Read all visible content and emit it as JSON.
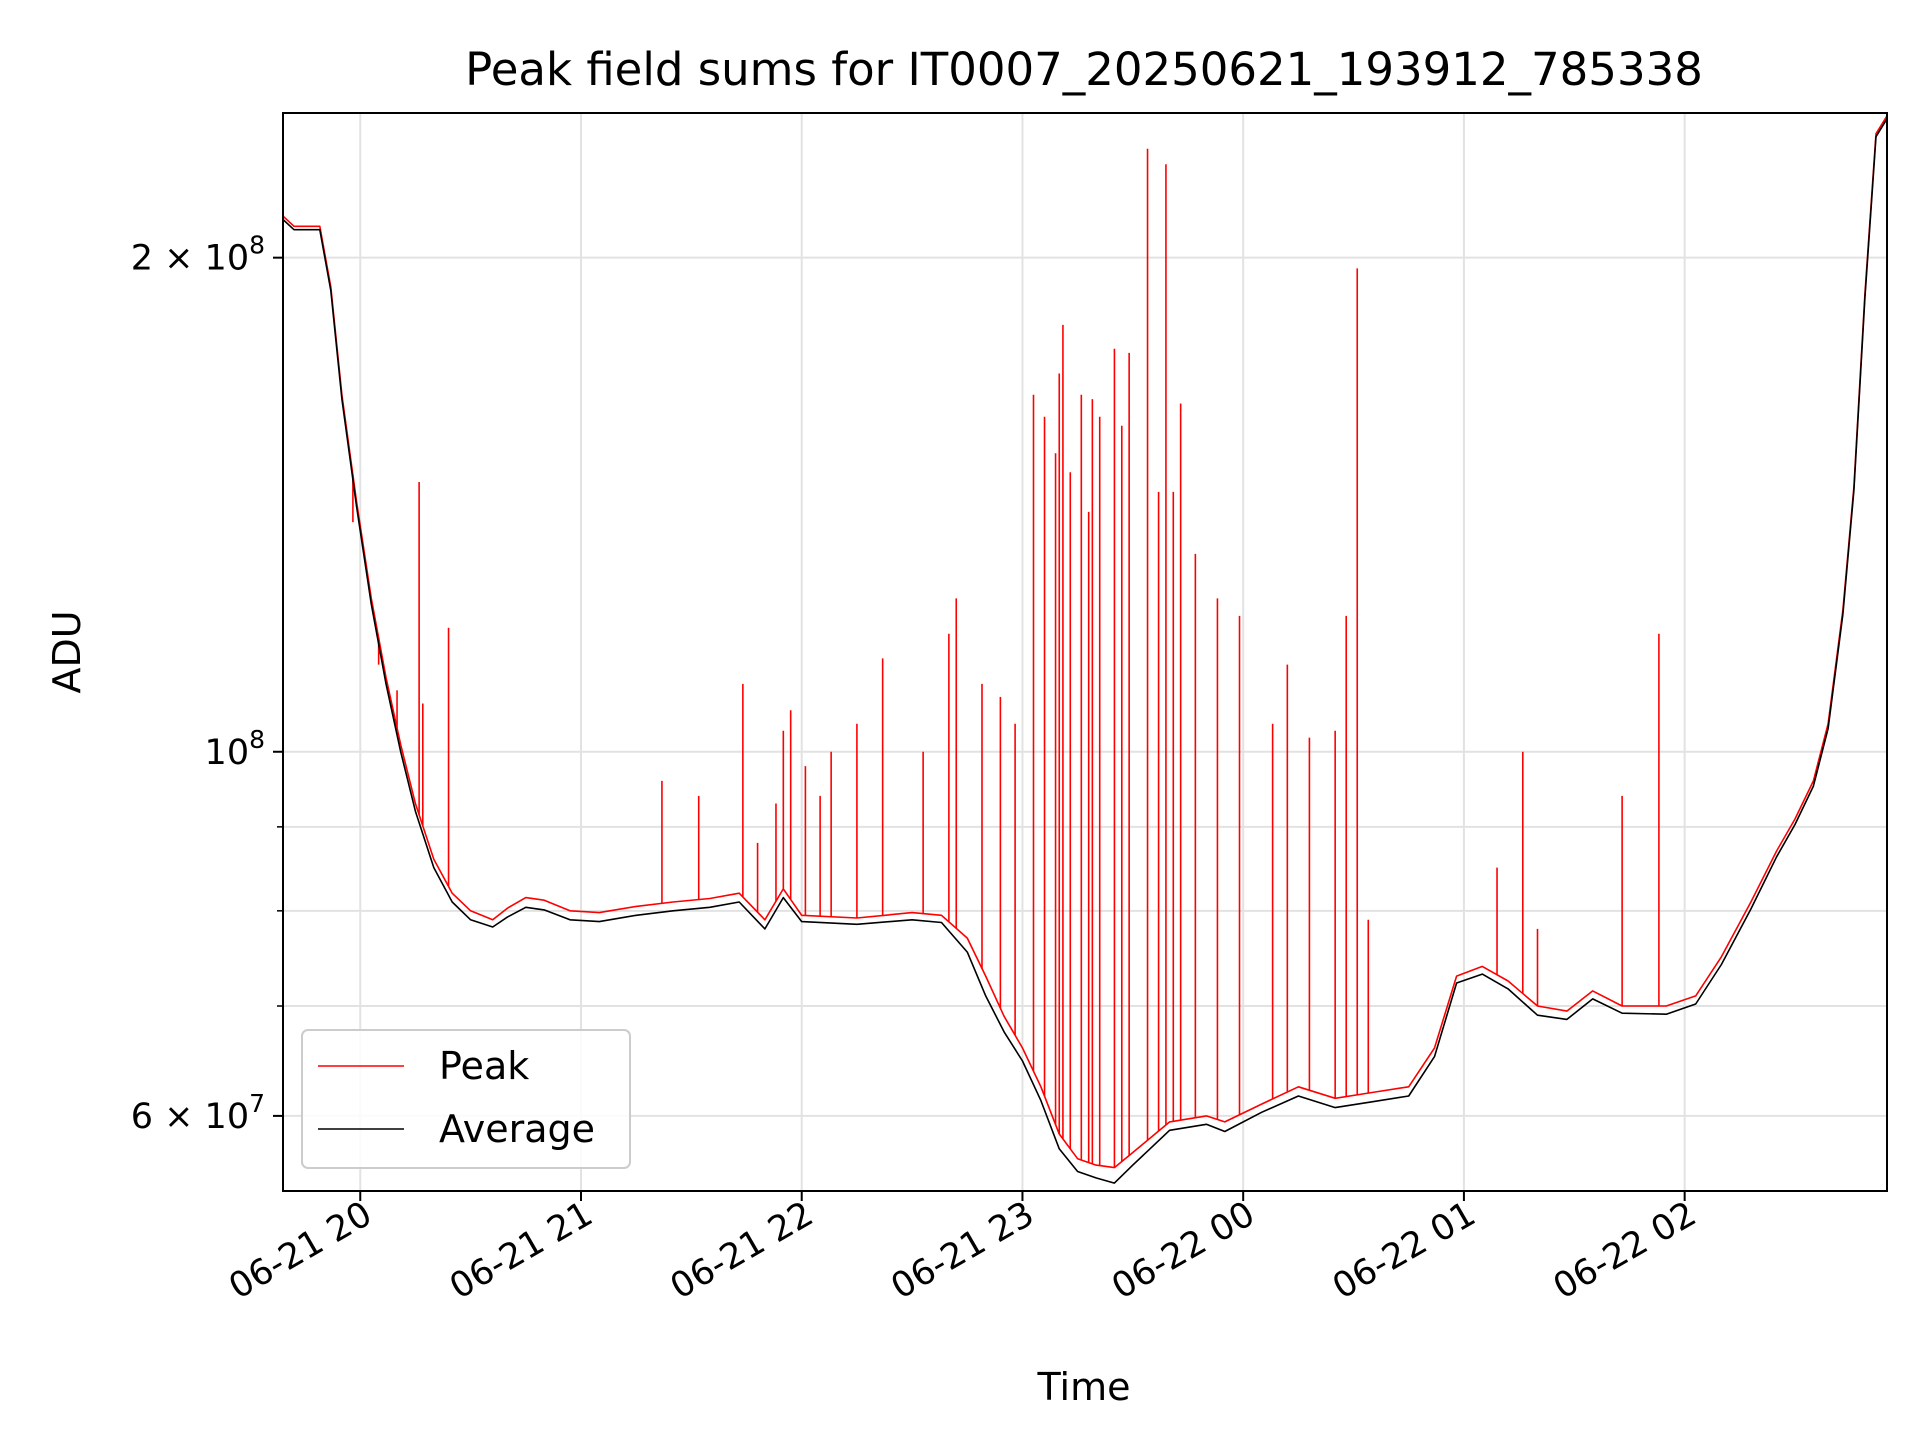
{
  "chart_data": {
    "type": "line",
    "title": "Peak field sums for IT0007_20250621_193912_785338",
    "xlabel": "Time",
    "ylabel": "ADU",
    "x_axis": {
      "type": "time",
      "range": [
        "2025-06-21 19:39",
        "2025-06-22 02:55"
      ],
      "ticks": [
        {
          "t": "2025-06-21 20:00",
          "label": "06-21 20"
        },
        {
          "t": "2025-06-21 21:00",
          "label": "06-21 21"
        },
        {
          "t": "2025-06-21 22:00",
          "label": "06-21 22"
        },
        {
          "t": "2025-06-21 23:00",
          "label": "06-21 23"
        },
        {
          "t": "2025-06-22 00:00",
          "label": "06-22 00"
        },
        {
          "t": "2025-06-22 01:00",
          "label": "06-22 01"
        },
        {
          "t": "2025-06-22 02:00",
          "label": "06-22 02"
        }
      ]
    },
    "y_axis": {
      "scale": "log",
      "range": [
        54000000,
        245000000
      ],
      "major_ticks": [
        {
          "value": 60000000,
          "mantissa": "6",
          "exponent": "7"
        },
        {
          "value": 100000000,
          "mantissa": "",
          "exponent": "8"
        },
        {
          "value": 200000000,
          "mantissa": "2",
          "exponent": "8"
        }
      ],
      "minor_ticks": [
        70000000,
        80000000,
        90000000
      ]
    },
    "grid": true,
    "legend": {
      "placement": "lower-left"
    },
    "series": [
      {
        "name": "Peak",
        "color": "#ff0000",
        "points": [
          [
            "2025-06-21 19:39",
            212000000
          ],
          [
            "2025-06-21 19:42",
            209000000
          ],
          [
            "2025-06-21 19:49",
            209000000
          ],
          [
            "2025-06-21 19:52",
            192000000
          ],
          [
            "2025-06-21 19:55",
            165000000
          ],
          [
            "2025-06-21 19:59",
            142000000
          ],
          [
            "2025-06-21 20:03",
            124000000
          ],
          [
            "2025-06-21 20:07",
            111000000
          ],
          [
            "2025-06-21 20:11",
            101000000
          ],
          [
            "2025-06-21 20:15",
            93000000
          ],
          [
            "2025-06-21 20:20",
            86000000
          ],
          [
            "2025-06-21 20:25",
            82000000
          ],
          [
            "2025-06-21 20:30",
            80000000
          ],
          [
            "2025-06-21 20:36",
            79000000
          ],
          [
            "2025-06-21 20:40",
            80300000
          ],
          [
            "2025-06-21 20:45",
            81500000
          ],
          [
            "2025-06-21 20:50",
            81200000
          ],
          [
            "2025-06-21 20:57",
            80000000
          ],
          [
            "2025-06-21 21:05",
            79800000
          ],
          [
            "2025-06-21 21:15",
            80500000
          ],
          [
            "2025-06-21 21:25",
            81000000
          ],
          [
            "2025-06-21 21:35",
            81400000
          ],
          [
            "2025-06-21 21:43",
            82000000
          ],
          [
            "2025-06-21 21:50",
            79000000
          ],
          [
            "2025-06-21 21:55",
            82500000
          ],
          [
            "2025-06-21 22:00",
            79500000
          ],
          [
            "2025-06-21 22:15",
            79200000
          ],
          [
            "2025-06-21 22:30",
            79800000
          ],
          [
            "2025-06-21 22:38",
            79500000
          ],
          [
            "2025-06-21 22:45",
            77000000
          ],
          [
            "2025-06-21 22:50",
            73000000
          ],
          [
            "2025-06-21 22:55",
            69000000
          ],
          [
            "2025-06-21 23:00",
            66000000
          ],
          [
            "2025-06-21 23:05",
            62500000
          ],
          [
            "2025-06-21 23:10",
            58500000
          ],
          [
            "2025-06-21 23:15",
            56500000
          ],
          [
            "2025-06-21 23:20",
            56000000
          ],
          [
            "2025-06-21 23:25",
            55800000
          ],
          [
            "2025-06-21 23:30",
            57000000
          ],
          [
            "2025-06-21 23:40",
            59500000
          ],
          [
            "2025-06-21 23:50",
            60000000
          ],
          [
            "2025-06-21 23:55",
            59500000
          ],
          [
            "2025-06-22 00:05",
            61000000
          ],
          [
            "2025-06-22 00:15",
            62500000
          ],
          [
            "2025-06-22 00:25",
            61500000
          ],
          [
            "2025-06-22 00:35",
            62000000
          ],
          [
            "2025-06-22 00:45",
            62500000
          ],
          [
            "2025-06-22 00:52",
            66000000
          ],
          [
            "2025-06-22 00:58",
            73000000
          ],
          [
            "2025-06-22 01:05",
            74000000
          ],
          [
            "2025-06-22 01:12",
            72500000
          ],
          [
            "2025-06-22 01:20",
            70000000
          ],
          [
            "2025-06-22 01:28",
            69500000
          ],
          [
            "2025-06-22 01:35",
            71500000
          ],
          [
            "2025-06-22 01:43",
            70000000
          ],
          [
            "2025-06-22 01:55",
            70000000
          ],
          [
            "2025-06-22 02:03",
            71000000
          ],
          [
            "2025-06-22 02:10",
            75000000
          ],
          [
            "2025-06-22 02:18",
            81000000
          ],
          [
            "2025-06-22 02:25",
            87000000
          ],
          [
            "2025-06-22 02:30",
            91000000
          ],
          [
            "2025-06-22 02:35",
            96000000
          ],
          [
            "2025-06-22 02:39",
            104000000
          ],
          [
            "2025-06-22 02:43",
            122000000
          ],
          [
            "2025-06-22 02:46",
            145000000
          ],
          [
            "2025-06-22 02:49",
            190000000
          ],
          [
            "2025-06-22 02:52",
            238000000
          ],
          [
            "2025-06-22 02:55",
            244000000
          ]
        ]
      },
      {
        "name": "Average",
        "color": "#000000",
        "points": [
          [
            "2025-06-21 19:39",
            211000000
          ],
          [
            "2025-06-21 19:42",
            208000000
          ],
          [
            "2025-06-21 19:49",
            208000000
          ],
          [
            "2025-06-21 19:52",
            191000000
          ],
          [
            "2025-06-21 19:55",
            164000000
          ],
          [
            "2025-06-21 19:59",
            141000000
          ],
          [
            "2025-06-21 20:03",
            123000000
          ],
          [
            "2025-06-21 20:07",
            110000000
          ],
          [
            "2025-06-21 20:11",
            100000000
          ],
          [
            "2025-06-21 20:15",
            92000000
          ],
          [
            "2025-06-21 20:20",
            85000000
          ],
          [
            "2025-06-21 20:25",
            81000000
          ],
          [
            "2025-06-21 20:30",
            79000000
          ],
          [
            "2025-06-21 20:36",
            78200000
          ],
          [
            "2025-06-21 20:40",
            79300000
          ],
          [
            "2025-06-21 20:45",
            80400000
          ],
          [
            "2025-06-21 20:50",
            80100000
          ],
          [
            "2025-06-21 20:57",
            79000000
          ],
          [
            "2025-06-21 21:05",
            78800000
          ],
          [
            "2025-06-21 21:15",
            79500000
          ],
          [
            "2025-06-21 21:25",
            80000000
          ],
          [
            "2025-06-21 21:35",
            80400000
          ],
          [
            "2025-06-21 21:43",
            81000000
          ],
          [
            "2025-06-21 21:50",
            78000000
          ],
          [
            "2025-06-21 21:55",
            81500000
          ],
          [
            "2025-06-21 22:00",
            78800000
          ],
          [
            "2025-06-21 22:15",
            78500000
          ],
          [
            "2025-06-21 22:30",
            79000000
          ],
          [
            "2025-06-21 22:38",
            78700000
          ],
          [
            "2025-06-21 22:45",
            75500000
          ],
          [
            "2025-06-21 22:50",
            71000000
          ],
          [
            "2025-06-21 22:55",
            67500000
          ],
          [
            "2025-06-21 23:00",
            64800000
          ],
          [
            "2025-06-21 23:05",
            61300000
          ],
          [
            "2025-06-21 23:10",
            57300000
          ],
          [
            "2025-06-21 23:15",
            55500000
          ],
          [
            "2025-06-21 23:20",
            55000000
          ],
          [
            "2025-06-21 23:25",
            54600000
          ],
          [
            "2025-06-21 23:30",
            56000000
          ],
          [
            "2025-06-21 23:40",
            58800000
          ],
          [
            "2025-06-21 23:50",
            59300000
          ],
          [
            "2025-06-21 23:55",
            58700000
          ],
          [
            "2025-06-22 00:05",
            60300000
          ],
          [
            "2025-06-22 00:15",
            61700000
          ],
          [
            "2025-06-22 00:25",
            60700000
          ],
          [
            "2025-06-22 00:35",
            61200000
          ],
          [
            "2025-06-22 00:45",
            61700000
          ],
          [
            "2025-06-22 00:52",
            65200000
          ],
          [
            "2025-06-22 00:58",
            72300000
          ],
          [
            "2025-06-22 01:05",
            73200000
          ],
          [
            "2025-06-22 01:12",
            71700000
          ],
          [
            "2025-06-22 01:20",
            69100000
          ],
          [
            "2025-06-22 01:28",
            68700000
          ],
          [
            "2025-06-22 01:35",
            70700000
          ],
          [
            "2025-06-22 01:43",
            69300000
          ],
          [
            "2025-06-22 01:55",
            69200000
          ],
          [
            "2025-06-22 02:03",
            70200000
          ],
          [
            "2025-06-22 02:10",
            74200000
          ],
          [
            "2025-06-22 02:18",
            80200000
          ],
          [
            "2025-06-22 02:25",
            86300000
          ],
          [
            "2025-06-22 02:30",
            90300000
          ],
          [
            "2025-06-22 02:35",
            95300000
          ],
          [
            "2025-06-22 02:39",
            103300000
          ],
          [
            "2025-06-22 02:43",
            121300000
          ],
          [
            "2025-06-22 02:46",
            144300000
          ],
          [
            "2025-06-22 02:49",
            189000000
          ],
          [
            "2025-06-22 02:52",
            237000000
          ],
          [
            "2025-06-22 02:55",
            243000000
          ]
        ]
      }
    ],
    "peak_spikes": [
      [
        "2025-06-21 19:58",
        138000000
      ],
      [
        "2025-06-21 20:05",
        113000000
      ],
      [
        "2025-06-21 20:10",
        109000000
      ],
      [
        "2025-06-21 20:16",
        146000000
      ],
      [
        "2025-06-21 20:17",
        107000000
      ],
      [
        "2025-06-21 20:24",
        119000000
      ],
      [
        "2025-06-21 21:22",
        96000000
      ],
      [
        "2025-06-21 21:32",
        94000000
      ],
      [
        "2025-06-21 21:44",
        110000000
      ],
      [
        "2025-06-21 21:48",
        88000000
      ],
      [
        "2025-06-21 21:53",
        93000000
      ],
      [
        "2025-06-21 21:55",
        103000000
      ],
      [
        "2025-06-21 21:57",
        106000000
      ],
      [
        "2025-06-21 22:01",
        98000000
      ],
      [
        "2025-06-21 22:05",
        94000000
      ],
      [
        "2025-06-21 22:08",
        100000000
      ],
      [
        "2025-06-21 22:15",
        104000000
      ],
      [
        "2025-06-21 22:22",
        114000000
      ],
      [
        "2025-06-21 22:33",
        100000000
      ],
      [
        "2025-06-21 22:40",
        118000000
      ],
      [
        "2025-06-21 22:42",
        124000000
      ],
      [
        "2025-06-21 22:49",
        110000000
      ],
      [
        "2025-06-21 22:54",
        108000000
      ],
      [
        "2025-06-21 22:58",
        104000000
      ],
      [
        "2025-06-21 23:03",
        165000000
      ],
      [
        "2025-06-21 23:06",
        160000000
      ],
      [
        "2025-06-21 23:09",
        152000000
      ],
      [
        "2025-06-21 23:10",
        170000000
      ],
      [
        "2025-06-21 23:11",
        182000000
      ],
      [
        "2025-06-21 23:13",
        148000000
      ],
      [
        "2025-06-21 23:16",
        165000000
      ],
      [
        "2025-06-21 23:18",
        140000000
      ],
      [
        "2025-06-21 23:19",
        164000000
      ],
      [
        "2025-06-21 23:21",
        160000000
      ],
      [
        "2025-06-21 23:25",
        176000000
      ],
      [
        "2025-06-21 23:27",
        158000000
      ],
      [
        "2025-06-21 23:29",
        175000000
      ],
      [
        "2025-06-21 23:34",
        233000000
      ],
      [
        "2025-06-21 23:37",
        144000000
      ],
      [
        "2025-06-21 23:39",
        228000000
      ],
      [
        "2025-06-21 23:41",
        144000000
      ],
      [
        "2025-06-21 23:43",
        163000000
      ],
      [
        "2025-06-21 23:47",
        132000000
      ],
      [
        "2025-06-21 23:53",
        124000000
      ],
      [
        "2025-06-21 23:59",
        121000000
      ],
      [
        "2025-06-22 00:08",
        104000000
      ],
      [
        "2025-06-22 00:12",
        113000000
      ],
      [
        "2025-06-22 00:18",
        102000000
      ],
      [
        "2025-06-22 00:25",
        103000000
      ],
      [
        "2025-06-22 00:28",
        121000000
      ],
      [
        "2025-06-22 00:31",
        197000000
      ],
      [
        "2025-06-22 00:34",
        79000000
      ],
      [
        "2025-06-22 01:09",
        85000000
      ],
      [
        "2025-06-22 01:16",
        100000000
      ],
      [
        "2025-06-22 01:20",
        78000000
      ],
      [
        "2025-06-22 01:43",
        94000000
      ],
      [
        "2025-06-22 01:53",
        118000000
      ]
    ]
  },
  "legend_items": [
    {
      "label": "Peak",
      "color": "#ff0000"
    },
    {
      "label": "Average",
      "color": "#000000"
    }
  ]
}
